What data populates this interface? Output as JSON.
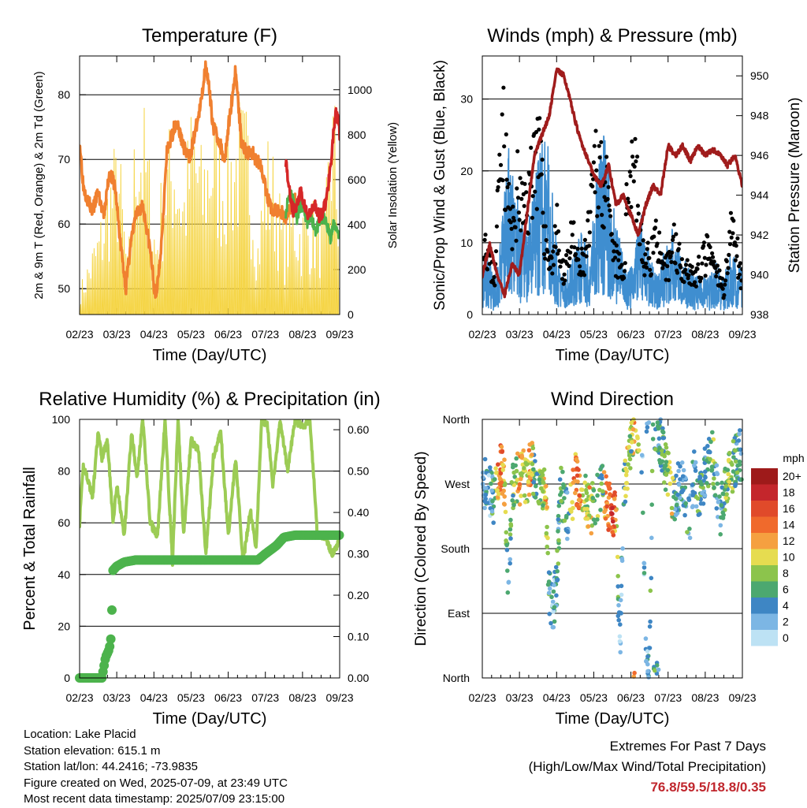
{
  "x_ticks": [
    "02/23",
    "03/23",
    "04/23",
    "05/23",
    "06/23",
    "07/23",
    "08/23",
    "09/23"
  ],
  "info": {
    "location": "Location: Lake Placid",
    "elevation": "Station elevation: 615.1 m",
    "latlon": "Station lat/lon: 44.2416; -73.9835",
    "created": "Figure created on Wed, 2025-07-09, at 23:49 UTC",
    "recent": "Most recent data timestamp: 2025/07/09 23:15:00"
  },
  "extremes": {
    "title": "Extremes For Past 7 Days",
    "subtitle": "(High/Low/Max Wind/Total Precipitation)",
    "values": "76.8/59.5/18.8/0.35"
  },
  "chart_data": [
    {
      "type": "line",
      "title": "Temperature (F)",
      "xlabel": "Time (Day/UTC)",
      "ylabel": "2m & 9m T (Red, Orange) & 2m Td (Green)",
      "y2label": "Solar Insolation (Yellow)",
      "ylim": [
        46,
        86
      ],
      "y_ticks": [
        50,
        60,
        70,
        80
      ],
      "y2lim": [
        0,
        1150
      ],
      "y2_ticks": [
        0,
        200,
        400,
        600,
        800,
        1000
      ],
      "xlim": [
        0,
        7
      ],
      "colors": {
        "t2m": "#d62728",
        "t9m": "#f08030",
        "td": "#4cb34c",
        "solar": "#f5d442"
      },
      "series": [
        {
          "key": "t9m",
          "x": [
            0,
            0.1,
            0.2,
            0.35,
            0.5,
            0.65,
            0.8,
            0.95,
            1.1,
            1.25,
            1.35,
            1.5,
            1.7,
            1.9,
            2.05,
            2.2,
            2.35,
            2.5,
            2.6,
            2.8,
            2.95,
            3.1,
            3.25,
            3.4,
            3.6,
            3.75,
            3.9,
            4.05,
            4.2,
            4.35,
            4.5,
            4.65,
            4.75,
            4.9,
            5.05,
            5.2,
            5.4,
            5.55,
            5.7,
            5.8
          ],
          "y": [
            73,
            66,
            64,
            62,
            65,
            61,
            68,
            66,
            57,
            50,
            56,
            61,
            63,
            56,
            48,
            57,
            71,
            74,
            76,
            72,
            70,
            74,
            78,
            85,
            75,
            73,
            70,
            77,
            84,
            73,
            71,
            71,
            70,
            69,
            64,
            62,
            62,
            61,
            63,
            64
          ]
        },
        {
          "key": "t2m",
          "x": [
            5.55,
            5.65,
            5.75,
            5.85,
            5.95,
            6.05,
            6.15,
            6.25,
            6.35,
            6.45,
            6.55,
            6.65,
            6.75,
            6.85,
            6.9,
            6.95,
            7.0
          ],
          "y": [
            70,
            65,
            62,
            63,
            65,
            63,
            61,
            62,
            63,
            61,
            62,
            64,
            69,
            75,
            77,
            76,
            74
          ]
        },
        {
          "key": "td",
          "x": [
            5.55,
            5.65,
            5.75,
            5.85,
            5.95,
            6.05,
            6.15,
            6.25,
            6.35,
            6.45,
            6.55,
            6.65,
            6.75,
            6.85,
            6.95,
            7.0
          ],
          "y": [
            62,
            65,
            64,
            61,
            63,
            62,
            60,
            61,
            59,
            60,
            61,
            60,
            58,
            60,
            59,
            58
          ]
        },
        {
          "key": "solar",
          "x": [
            0.05,
            0.3,
            0.55,
            0.8,
            1.05,
            1.3,
            1.55,
            1.65,
            1.8,
            2.05,
            2.3,
            2.55,
            2.8,
            3.05,
            3.3,
            3.55,
            3.8,
            4.05,
            4.3,
            4.55,
            4.8,
            5.05,
            5.3,
            5.5,
            5.75,
            5.95,
            6.2,
            6.45,
            6.6,
            6.75,
            6.85,
            6.95
          ],
          "y": [
            150,
            300,
            450,
            700,
            850,
            250,
            1100,
            1050,
            900,
            400,
            800,
            950,
            650,
            1050,
            750,
            1000,
            850,
            900,
            1000,
            950,
            400,
            850,
            700,
            400,
            600,
            500,
            550,
            500,
            450,
            1050,
            1100,
            650
          ]
        }
      ]
    },
    {
      "type": "scatter",
      "title": "Winds (mph) & Pressure (mb)",
      "xlabel": "Time (Day/UTC)",
      "ylabel": "Sonic/Prop Wind & Gust (Blue, Black)",
      "y2label": "Station Pressure (Maroon)",
      "ylim": [
        0,
        36
      ],
      "y_ticks": [
        0,
        10,
        20,
        30
      ],
      "y2lim": [
        938,
        951
      ],
      "y2_ticks": [
        938,
        940,
        942,
        944,
        946,
        948,
        950
      ],
      "xlim": [
        0,
        7
      ],
      "colors": {
        "wind": "#3f8ed0",
        "gust": "#000000",
        "pressure": "#a01c1c"
      },
      "series": [
        {
          "key": "wind",
          "x": [
            0.1,
            0.3,
            0.5,
            0.7,
            0.9,
            1.1,
            1.3,
            1.5,
            1.7,
            1.9,
            2.1,
            2.3,
            2.5,
            2.7,
            2.9,
            3.1,
            3.3,
            3.5,
            3.7,
            3.9,
            4.1,
            4.3,
            4.5,
            4.7,
            4.9,
            5.1,
            5.3,
            5.5,
            5.7,
            5.9,
            6.1,
            6.3,
            6.5,
            6.7,
            6.9
          ],
          "y": [
            5,
            3,
            6,
            13,
            10,
            7,
            8,
            12,
            15,
            9,
            3,
            4,
            5,
            7,
            4,
            13,
            14,
            9,
            6,
            3,
            6,
            8,
            5,
            3,
            5,
            7,
            5,
            4,
            3,
            3,
            3,
            4,
            3,
            5,
            4
          ]
        },
        {
          "key": "gust",
          "x": [
            0.05,
            0.2,
            0.35,
            0.5,
            0.65,
            0.8,
            0.95,
            1.1,
            1.25,
            1.4,
            1.55,
            1.7,
            1.85,
            2.0,
            2.15,
            2.3,
            2.45,
            2.6,
            2.75,
            2.9,
            3.05,
            3.2,
            3.35,
            3.5,
            3.65,
            3.8,
            3.95,
            4.1,
            4.25,
            4.4,
            4.55,
            4.7,
            4.85,
            5.0,
            5.15,
            5.3,
            5.45,
            5.6,
            5.75,
            5.9,
            6.05,
            6.2,
            6.35,
            6.5,
            6.65,
            6.8,
            6.95
          ],
          "y": [
            14,
            8,
            6,
            34,
            22,
            12,
            20,
            16,
            19,
            27,
            24,
            12,
            8,
            14,
            6,
            10,
            12,
            7,
            9,
            14,
            25,
            23,
            19,
            10,
            8,
            6,
            24,
            27,
            12,
            8,
            10,
            14,
            6,
            8,
            12,
            9,
            8,
            7,
            6,
            8,
            10,
            8,
            6,
            4,
            12,
            14,
            6
          ]
        },
        {
          "key": "pressure",
          "x": [
            0,
            0.2,
            0.4,
            0.6,
            0.8,
            1.0,
            1.2,
            1.4,
            1.6,
            1.8,
            2.0,
            2.2,
            2.4,
            2.6,
            2.8,
            3.0,
            3.2,
            3.4,
            3.6,
            3.8,
            4.0,
            4.2,
            4.4,
            4.6,
            4.8,
            5.0,
            5.2,
            5.4,
            5.6,
            5.8,
            6.0,
            6.2,
            6.4,
            6.6,
            6.8,
            7.0
          ],
          "y": [
            940,
            941.5,
            940,
            939,
            940.5,
            940,
            943,
            946,
            947,
            948,
            950.3,
            950,
            948.5,
            947,
            946,
            945,
            944.5,
            945.5,
            943.5,
            944,
            943,
            942,
            943.5,
            944.5,
            944,
            946.5,
            946,
            946.5,
            945.7,
            946.5,
            946,
            946.3,
            946,
            945.5,
            946,
            944.5
          ]
        }
      ]
    },
    {
      "type": "line",
      "title": "Relative Humidity (%) & Precipitation (in)",
      "xlabel": "Time (Day/UTC)",
      "ylabel": "Percent & Total Rainfall",
      "ylim": [
        0,
        100
      ],
      "y_ticks": [
        0,
        20,
        40,
        60,
        80,
        100
      ],
      "y2lim": [
        0,
        0.625
      ],
      "y2_ticks": [
        "0.00",
        "0.10",
        "0.20",
        "0.30",
        "0.40",
        "0.50",
        "0.60"
      ],
      "xlim": [
        0,
        7
      ],
      "colors": {
        "rh": "#9ccc55",
        "precip": "#4cb34c"
      },
      "series": [
        {
          "key": "rh",
          "x": [
            0,
            0.1,
            0.2,
            0.35,
            0.5,
            0.6,
            0.75,
            0.9,
            1.0,
            1.2,
            1.4,
            1.55,
            1.7,
            1.9,
            2.1,
            2.3,
            2.5,
            2.65,
            2.8,
            3.0,
            3.2,
            3.4,
            3.6,
            3.8,
            4.0,
            4.2,
            4.4,
            4.6,
            4.75,
            4.9,
            5.05,
            5.2,
            5.4,
            5.6,
            5.8,
            6.0,
            6.2,
            6.4,
            6.6,
            6.8,
            6.95,
            7.0
          ],
          "y": [
            60,
            82,
            78,
            70,
            95,
            85,
            92,
            60,
            75,
            55,
            95,
            78,
            100,
            60,
            55,
            100,
            45,
            100,
            55,
            92,
            88,
            48,
            85,
            95,
            55,
            85,
            45,
            65,
            50,
            100,
            98,
            75,
            100,
            80,
            100,
            97,
            100,
            55,
            55,
            48,
            52,
            55
          ]
        },
        {
          "key": "precip",
          "x": [
            0,
            0.15,
            0.3,
            0.45,
            0.6,
            0.7,
            0.8,
            0.85,
            0.9,
            1.0,
            1.2,
            1.5,
            2.0,
            2.5,
            3.0,
            3.5,
            4.0,
            4.5,
            4.8,
            5.0,
            5.3,
            5.5,
            5.8,
            6.2,
            6.6,
            7.0
          ],
          "y": [
            0.0,
            0.0,
            0.0,
            0.0,
            0.0,
            0.05,
            0.07,
            0.1,
            0.26,
            0.27,
            0.28,
            0.285,
            0.285,
            0.285,
            0.285,
            0.285,
            0.285,
            0.285,
            0.285,
            0.3,
            0.32,
            0.34,
            0.345,
            0.345,
            0.345,
            0.345
          ]
        }
      ]
    },
    {
      "type": "scatter",
      "title": "Wind Direction",
      "xlabel": "Time (Day/UTC)",
      "ylabel": "Direction (Colored By Speed)",
      "y_ticks": [
        "North",
        "East",
        "South",
        "West",
        "North"
      ],
      "xlim": [
        0,
        7
      ],
      "legend": {
        "title": "mph",
        "labels": [
          "20+",
          "18",
          "16",
          "14",
          "12",
          "10",
          "8",
          "6",
          "4",
          "2",
          "0"
        ],
        "colors": [
          "#9e1a1a",
          "#c4262c",
          "#e04a2a",
          "#f06a2c",
          "#f5a040",
          "#e6dc50",
          "#8cc44c",
          "#4ca870",
          "#3e86c4",
          "#7cb6e4",
          "#bde2f4"
        ]
      },
      "series": [
        {
          "key": "direction",
          "x": [
            0.1,
            0.2,
            0.3,
            0.4,
            0.5,
            0.6,
            0.7,
            0.8,
            0.9,
            1.0,
            1.1,
            1.2,
            1.3,
            1.4,
            1.5,
            1.6,
            1.7,
            1.8,
            1.9,
            2.0,
            2.1,
            2.2,
            2.3,
            2.4,
            2.5,
            2.6,
            2.7,
            2.8,
            2.9,
            3.0,
            3.1,
            3.2,
            3.3,
            3.4,
            3.5,
            3.6,
            3.7,
            3.8,
            3.9,
            4.0,
            4.1,
            4.2,
            4.3,
            4.4,
            4.5,
            4.6,
            4.7,
            4.8,
            4.9,
            5.0,
            5.1,
            5.2,
            5.3,
            5.4,
            5.5,
            5.6,
            5.7,
            5.8,
            5.9,
            6.0,
            6.1,
            6.2,
            6.3,
            6.4,
            6.5,
            6.6,
            6.7,
            6.8,
            6.9
          ],
          "y": [
            270,
            260,
            250,
            280,
            300,
            270,
            120,
            260,
            280,
            275,
            290,
            270,
            300,
            285,
            280,
            270,
            265,
            120,
            100,
            130,
            260,
            250,
            220,
            240,
            280,
            260,
            255,
            250,
            230,
            240,
            250,
            270,
            250,
            240,
            230,
            220,
            30,
            260,
            290,
            330,
            340,
            300,
            310,
            20,
            10,
            350,
            355,
            330,
            300,
            280,
            260,
            250,
            270,
            280,
            240,
            220,
            300,
            250,
            260,
            290,
            300,
            310,
            270,
            230,
            260,
            280,
            290,
            300,
            310
          ],
          "speed": [
            4,
            3,
            6,
            12,
            14,
            10,
            3,
            8,
            6,
            12,
            10,
            9,
            14,
            4,
            6,
            8,
            11,
            5,
            3,
            4,
            6,
            8,
            3,
            12,
            13,
            15,
            10,
            8,
            12,
            6,
            8,
            4,
            12,
            14,
            16,
            12,
            2,
            4,
            10,
            6,
            12,
            8,
            3,
            2,
            4,
            6,
            3,
            5,
            6,
            8,
            10,
            4,
            3,
            4,
            6,
            3,
            4,
            6,
            5,
            4,
            6,
            8,
            4,
            5,
            6,
            7,
            8,
            6,
            5
          ]
        }
      ]
    }
  ]
}
